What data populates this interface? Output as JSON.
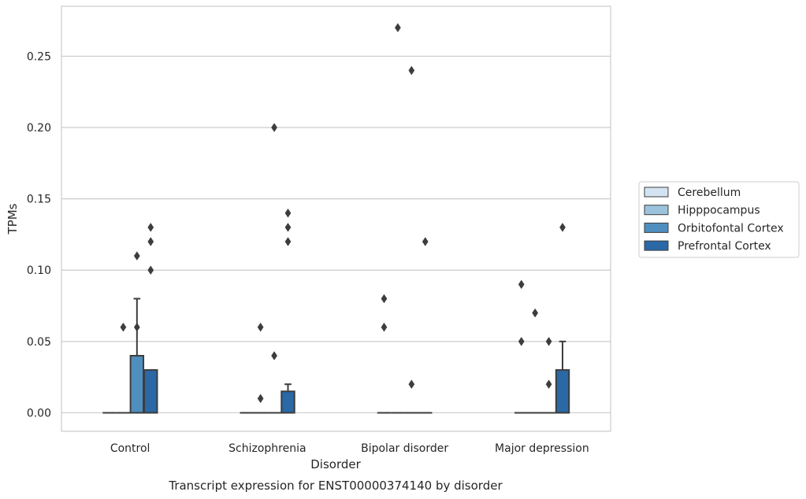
{
  "chart_data": {
    "type": "box",
    "caption": "Transcript expression for ENST00000374140 by disorder",
    "xlabel": "Disorder",
    "ylabel": "TPMs",
    "ylim": [
      -0.013,
      0.285
    ],
    "yticks": [
      0.0,
      0.05,
      0.1,
      0.15,
      0.2,
      0.25
    ],
    "ytick_labels": [
      "0.00",
      "0.05",
      "0.10",
      "0.15",
      "0.20",
      "0.25"
    ],
    "grid": "horizontal",
    "legend_position": "right",
    "categories": [
      "Control",
      "Schizophrenia",
      "Bipolar disorder",
      "Major depression"
    ],
    "series": [
      {
        "name": "Cerebellum",
        "color": "#d4e3f1",
        "boxes": [
          {
            "q1": 0,
            "median": 0,
            "q3": 0,
            "whisker_low": 0,
            "whisker_high": 0,
            "outliers": []
          },
          {
            "q1": 0,
            "median": 0,
            "q3": 0,
            "whisker_low": 0,
            "whisker_high": 0,
            "outliers": []
          },
          {
            "q1": 0,
            "median": 0,
            "q3": 0,
            "whisker_low": 0,
            "whisker_high": 0,
            "outliers": [
              0.06,
              0.08
            ]
          },
          {
            "q1": 0,
            "median": 0,
            "q3": 0,
            "whisker_low": 0,
            "whisker_high": 0,
            "outliers": [
              0.05,
              0.09
            ]
          }
        ]
      },
      {
        "name": "Hipppocampus",
        "color": "#9cc3dd",
        "boxes": [
          {
            "q1": 0,
            "median": 0,
            "q3": 0,
            "whisker_low": 0,
            "whisker_high": 0,
            "outliers": [
              0.06
            ]
          },
          {
            "q1": 0,
            "median": 0,
            "q3": 0,
            "whisker_low": 0,
            "whisker_high": 0,
            "outliers": [
              0.01,
              0.06
            ]
          },
          {
            "q1": 0,
            "median": 0,
            "q3": 0,
            "whisker_low": 0,
            "whisker_high": 0,
            "outliers": [
              0.27
            ]
          },
          {
            "q1": 0,
            "median": 0,
            "q3": 0,
            "whisker_low": 0,
            "whisker_high": 0,
            "outliers": [
              0.07
            ]
          }
        ]
      },
      {
        "name": "Orbitofontal Cortex",
        "color": "#4f8fbf",
        "boxes": [
          {
            "q1": 0,
            "median": 0,
            "q3": 0.04,
            "whisker_low": 0,
            "whisker_high": 0.08,
            "outliers": [
              0.06,
              0.11
            ]
          },
          {
            "q1": 0,
            "median": 0,
            "q3": 0,
            "whisker_low": 0,
            "whisker_high": 0,
            "outliers": [
              0.04,
              0.2
            ]
          },
          {
            "q1": 0,
            "median": 0,
            "q3": 0,
            "whisker_low": 0,
            "whisker_high": 0,
            "outliers": [
              0.02,
              0.24
            ]
          },
          {
            "q1": 0,
            "median": 0,
            "q3": 0,
            "whisker_low": 0,
            "whisker_high": 0,
            "outliers": [
              0.02,
              0.05
            ]
          }
        ]
      },
      {
        "name": "Prefrontal Cortex",
        "color": "#2a68a6",
        "boxes": [
          {
            "q1": 0,
            "median": 0,
            "q3": 0.03,
            "whisker_low": 0,
            "whisker_high": 0.03,
            "outliers": [
              0.1,
              0.12,
              0.13
            ]
          },
          {
            "q1": 0,
            "median": 0,
            "q3": 0.015,
            "whisker_low": 0,
            "whisker_high": 0.02,
            "outliers": [
              0.12,
              0.13,
              0.14
            ]
          },
          {
            "q1": 0,
            "median": 0,
            "q3": 0,
            "whisker_low": 0,
            "whisker_high": 0,
            "outliers": [
              0.12
            ]
          },
          {
            "q1": 0,
            "median": 0,
            "q3": 0.03,
            "whisker_low": 0,
            "whisker_high": 0.05,
            "outliers": [
              0.13
            ]
          }
        ]
      }
    ]
  }
}
